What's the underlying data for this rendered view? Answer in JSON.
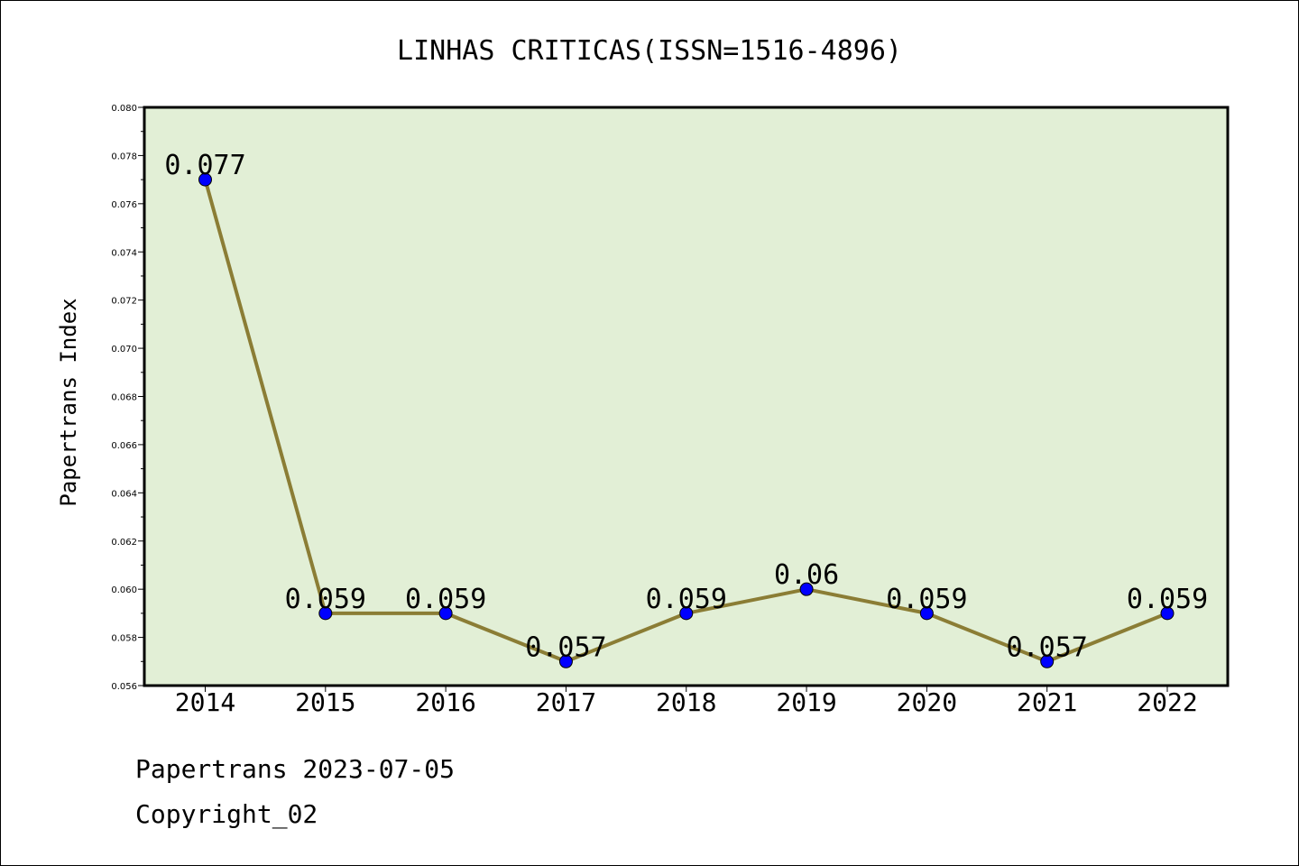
{
  "colors": {
    "plot_background": "#e2efd6",
    "line": "#8b7d35",
    "marker": "#0000ff",
    "axis": "#000000"
  },
  "footer": {
    "date_line": "Papertrans 2023-07-05",
    "copyright_line": "Copyright_02"
  },
  "chart_data": {
    "type": "line",
    "title": "LINHAS CRITICAS(ISSN=1516-4896)",
    "xlabel": "",
    "ylabel": "Papertrans Index",
    "categories": [
      "2014",
      "2015",
      "2016",
      "2017",
      "2018",
      "2019",
      "2020",
      "2021",
      "2022"
    ],
    "series": [
      {
        "values": [
          0.077,
          0.059,
          0.059,
          0.057,
          0.059,
          0.06,
          0.059,
          0.057,
          0.059
        ],
        "labels": [
          "0.077",
          "0.059",
          "0.059",
          "0.057",
          "0.059",
          "0.06",
          "0.059",
          "0.057",
          "0.059"
        ]
      }
    ],
    "ylim": [
      0.056,
      0.08
    ],
    "yticks": [
      "0.056",
      "0.058",
      "0.060",
      "0.062",
      "0.064",
      "0.066",
      "0.068",
      "0.070",
      "0.072",
      "0.074",
      "0.076",
      "0.078",
      "0.080"
    ],
    "grid": false,
    "legend": "none"
  }
}
